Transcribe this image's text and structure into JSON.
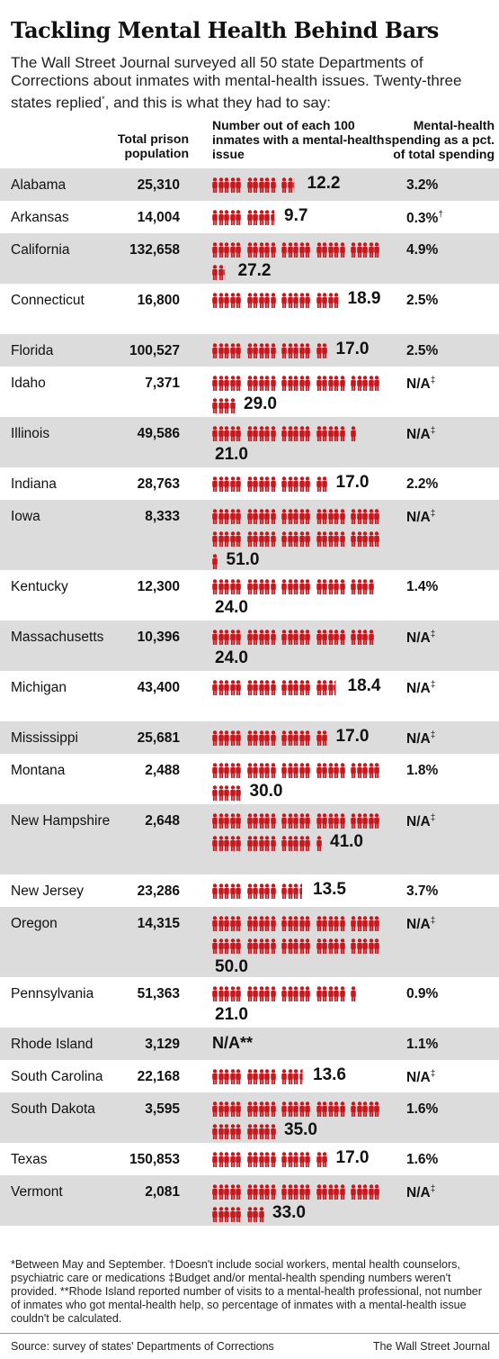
{
  "header": {
    "title": "Tackling Mental Health Behind Bars",
    "subtitle_main": "The Wall Street Journal surveyed all 50 state Departments of Corrections about inmates with mental-health issues. Twenty-three states replied",
    "subtitle_mark": "*",
    "subtitle_end": ", and this is what they had to say:"
  },
  "columns": {
    "population": "Total prison population",
    "mental_health": "Number out of each 100 inmates with a mental-health issue",
    "spending": "Mental-health spending as a pct. of total spending"
  },
  "colors": {
    "figure": "#c8181e",
    "row_shade": "#dcdcdc"
  },
  "icon": "person-icon",
  "chart_data": {
    "type": "table",
    "title": "Tackling Mental Health Behind Bars",
    "columns": [
      "Total prison population",
      "Number out of each 100 inmates with a mental-health issue",
      "Mental-health spending as a pct. of total spending"
    ],
    "rows": [
      {
        "state": "Alabama",
        "population": "25,310",
        "per100": 12.2,
        "per100_label": "12.2",
        "spending": "3.2%",
        "mark": ""
      },
      {
        "state": "Arkansas",
        "population": "14,004",
        "per100": 9.7,
        "per100_label": "9.7",
        "spending": "0.3%",
        "mark": "†"
      },
      {
        "state": "California",
        "population": "132,658",
        "per100": 27.2,
        "per100_label": "27.2",
        "spending": "4.9%",
        "mark": ""
      },
      {
        "state": "Connecticut",
        "population": "16,800",
        "per100": 18.9,
        "per100_label": "18.9",
        "spending": "2.5%",
        "mark": ""
      },
      {
        "state": "Florida",
        "population": "100,527",
        "per100": 17.0,
        "per100_label": "17.0",
        "spending": "2.5%",
        "mark": ""
      },
      {
        "state": "Idaho",
        "population": "7,371",
        "per100": 29.0,
        "per100_label": "29.0",
        "spending": "N/A",
        "mark": "‡"
      },
      {
        "state": "Illinois",
        "population": "49,586",
        "per100": 21.0,
        "per100_label": "21.0",
        "spending": "N/A",
        "mark": "‡"
      },
      {
        "state": "Indiana",
        "population": "28,763",
        "per100": 17.0,
        "per100_label": "17.0",
        "spending": "2.2%",
        "mark": ""
      },
      {
        "state": "Iowa",
        "population": "8,333",
        "per100": 51.0,
        "per100_label": "51.0",
        "spending": "N/A",
        "mark": "‡"
      },
      {
        "state": "Kentucky",
        "population": "12,300",
        "per100": 24.0,
        "per100_label": "24.0",
        "spending": "1.4%",
        "mark": ""
      },
      {
        "state": "Massachusetts",
        "population": "10,396",
        "per100": 24.0,
        "per100_label": "24.0",
        "spending": "N/A",
        "mark": "‡"
      },
      {
        "state": "Michigan",
        "population": "43,400",
        "per100": 18.4,
        "per100_label": "18.4",
        "spending": "N/A",
        "mark": "‡"
      },
      {
        "state": "Mississippi",
        "population": "25,681",
        "per100": 17.0,
        "per100_label": "17.0",
        "spending": "N/A",
        "mark": "‡"
      },
      {
        "state": "Montana",
        "population": "2,488",
        "per100": 30.0,
        "per100_label": "30.0",
        "spending": "1.8%",
        "mark": ""
      },
      {
        "state": "New Hampshire",
        "population": "2,648",
        "per100": 41.0,
        "per100_label": "41.0",
        "spending": "N/A",
        "mark": "‡"
      },
      {
        "state": "New Jersey",
        "population": "23,286",
        "per100": 13.5,
        "per100_label": "13.5",
        "spending": "3.7%",
        "mark": ""
      },
      {
        "state": "Oregon",
        "population": "14,315",
        "per100": 50.0,
        "per100_label": "50.0",
        "spending": "N/A",
        "mark": "‡"
      },
      {
        "state": "Pennsylvania",
        "population": "51,363",
        "per100": 21.0,
        "per100_label": "21.0",
        "spending": "0.9%",
        "mark": ""
      },
      {
        "state": "Rhode Island",
        "population": "3,129",
        "per100": null,
        "per100_label": "N/A**",
        "spending": "1.1%",
        "mark": ""
      },
      {
        "state": "South Carolina",
        "population": "22,168",
        "per100": 13.6,
        "per100_label": "13.6",
        "spending": "N/A",
        "mark": "‡"
      },
      {
        "state": "South Dakota",
        "population": "3,595",
        "per100": 35.0,
        "per100_label": "35.0",
        "spending": "1.6%",
        "mark": ""
      },
      {
        "state": "Texas",
        "population": "150,853",
        "per100": 17.0,
        "per100_label": "17.0",
        "spending": "1.6%",
        "mark": ""
      },
      {
        "state": "Vermont",
        "population": "2,081",
        "per100": 33.0,
        "per100_label": "33.0",
        "spending": "N/A",
        "mark": "‡"
      }
    ]
  },
  "footnote": "*Between May and September. †Doesn't include social workers, mental health counselors, psychiatric care or medications ‡Budget and/or mental-health spending numbers weren't provided. **Rhode Island reported number of visits to a mental-health professional, not number of inmates who got mental-health help, so percentage of inmates with a mental-health issue couldn't be calculated.",
  "source": "Source: survey of states' Departments of Corrections",
  "credit": "The Wall Street Journal"
}
